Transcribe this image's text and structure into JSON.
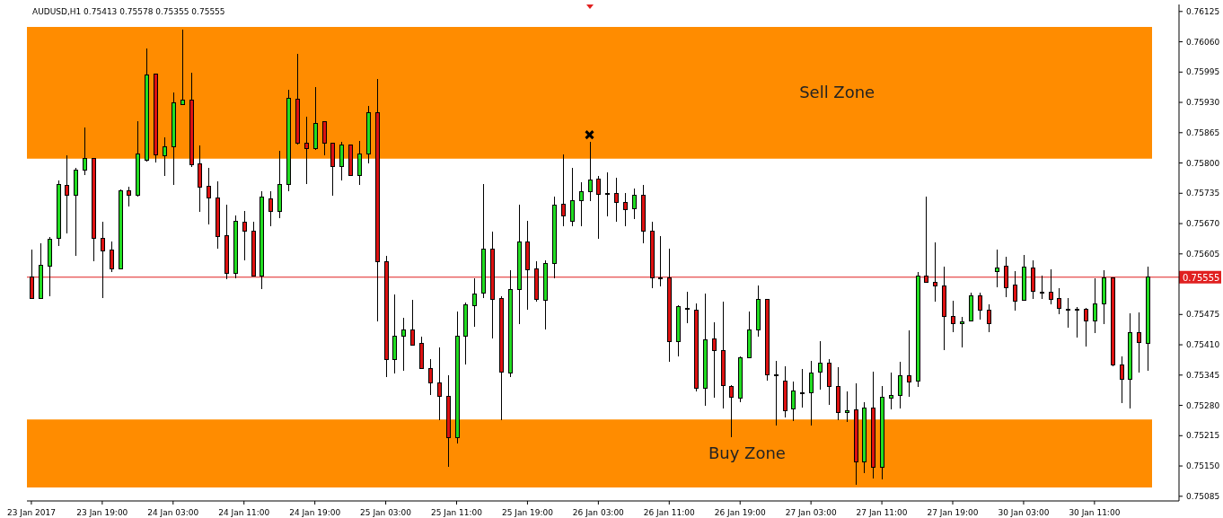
{
  "chart_data": {
    "type": "candlestick",
    "title": "AUDUSD,H1  0.75413 0.75578 0.75355 0.75555",
    "categories": [
      "23 Jan 2017",
      null,
      null,
      null,
      null,
      null,
      null,
      null,
      "23 Jan 19:00",
      null,
      null,
      null,
      null,
      null,
      null,
      null,
      "24 Jan 03:00",
      null,
      null,
      null,
      null,
      null,
      null,
      null,
      "24 Jan 11:00",
      null,
      null,
      null,
      null,
      null,
      null,
      null,
      "24 Jan 19:00",
      null,
      null,
      null,
      null,
      null,
      null,
      null,
      "25 Jan 03:00",
      null,
      null,
      null,
      null,
      null,
      null,
      null,
      "25 Jan 11:00",
      null,
      null,
      null,
      null,
      null,
      null,
      null,
      "25 Jan 19:00",
      null,
      null,
      null,
      null,
      null,
      null,
      null,
      "26 Jan 03:00",
      null,
      null,
      null,
      null,
      null,
      null,
      null,
      "26 Jan 11:00",
      null,
      null,
      null,
      null,
      null,
      null,
      null,
      "26 Jan 19:00",
      null,
      null,
      null,
      null,
      null,
      null,
      null,
      "27 Jan 03:00",
      null,
      null,
      null,
      null,
      null,
      null,
      null,
      "27 Jan 11:00",
      null,
      null,
      null,
      null,
      null,
      null,
      null,
      "27 Jan 19:00",
      null,
      null,
      null,
      null,
      null,
      null,
      null,
      "30 Jan 03:00",
      null,
      null,
      null,
      null,
      null,
      null,
      null,
      "30 Jan 11:00",
      null,
      null,
      null,
      null,
      null,
      null
    ],
    "ohlc": [
      [
        0.75556,
        0.75614,
        0.75508,
        0.7551
      ],
      [
        0.7551,
        0.75627,
        0.75508,
        0.75581
      ],
      [
        0.75579,
        0.75641,
        0.75514,
        0.75637
      ],
      [
        0.75639,
        0.75763,
        0.75621,
        0.75754
      ],
      [
        0.75752,
        0.75817,
        0.75648,
        0.75731
      ],
      [
        0.75731,
        0.7579,
        0.756,
        0.75784
      ],
      [
        0.75784,
        0.75876,
        0.75775,
        0.75809
      ],
      [
        0.75809,
        0.75809,
        0.75589,
        0.75639
      ],
      [
        0.75639,
        0.75673,
        0.7551,
        0.75612
      ],
      [
        0.75614,
        0.75631,
        0.75566,
        0.75572
      ],
      [
        0.75572,
        0.75744,
        0.75572,
        0.7574
      ],
      [
        0.7574,
        0.7575,
        0.75706,
        0.75731
      ],
      [
        0.75731,
        0.7589,
        0.75727,
        0.75819
      ],
      [
        0.75805,
        0.76045,
        0.75803,
        0.75989
      ],
      [
        0.75991,
        0.75991,
        0.75801,
        0.75817
      ],
      [
        0.75815,
        0.75855,
        0.75773,
        0.75834
      ],
      [
        0.75834,
        0.75951,
        0.75752,
        0.7593
      ],
      [
        0.75926,
        0.76087,
        0.75926,
        0.75935
      ],
      [
        0.75935,
        0.75993,
        0.75792,
        0.75796
      ],
      [
        0.75798,
        0.75838,
        0.75696,
        0.75748
      ],
      [
        0.7575,
        0.7579,
        0.75669,
        0.75725
      ],
      [
        0.75725,
        0.75761,
        0.75616,
        0.75643
      ],
      [
        0.75644,
        0.7571,
        0.75551,
        0.75564
      ],
      [
        0.75564,
        0.75688,
        0.75552,
        0.75675
      ],
      [
        0.75673,
        0.75698,
        0.75591,
        0.75654
      ],
      [
        0.75654,
        0.75673,
        0.75556,
        0.75558
      ],
      [
        0.75558,
        0.7574,
        0.7553,
        0.75727
      ],
      [
        0.75723,
        0.7574,
        0.75664,
        0.75696
      ],
      [
        0.75696,
        0.75826,
        0.75681,
        0.75754
      ],
      [
        0.75754,
        0.75957,
        0.7574,
        0.75939
      ],
      [
        0.75937,
        0.76035,
        0.7584,
        0.75842
      ],
      [
        0.75842,
        0.75899,
        0.75754,
        0.7583
      ],
      [
        0.7583,
        0.75962,
        0.75828,
        0.75884
      ],
      [
        0.75888,
        0.75888,
        0.75817,
        0.75842
      ],
      [
        0.75842,
        0.75842,
        0.75729,
        0.75792
      ],
      [
        0.75792,
        0.75845,
        0.75763,
        0.75838
      ],
      [
        0.75838,
        0.7584,
        0.75773,
        0.75773
      ],
      [
        0.75773,
        0.75847,
        0.75752,
        0.75819
      ],
      [
        0.75819,
        0.75922,
        0.758,
        0.75907
      ],
      [
        0.75907,
        0.7598,
        0.75461,
        0.75589
      ],
      [
        0.75589,
        0.756,
        0.7534,
        0.75378
      ],
      [
        0.75378,
        0.75518,
        0.75348,
        0.75428
      ],
      [
        0.75428,
        0.75468,
        0.75355,
        0.75441
      ],
      [
        0.75441,
        0.75507,
        0.75409,
        0.75409
      ],
      [
        0.75413,
        0.75428,
        0.75359,
        0.75359
      ],
      [
        0.75359,
        0.7538,
        0.75302,
        0.75328
      ],
      [
        0.75328,
        0.75405,
        0.75248,
        0.753
      ],
      [
        0.753,
        0.75344,
        0.75148,
        0.7521
      ],
      [
        0.7521,
        0.75482,
        0.75198,
        0.75428
      ],
      [
        0.75428,
        0.75501,
        0.75367,
        0.75495
      ],
      [
        0.75493,
        0.75552,
        0.75449,
        0.75518
      ],
      [
        0.7552,
        0.75754,
        0.7551,
        0.75616
      ],
      [
        0.75616,
        0.75652,
        0.75424,
        0.75508
      ],
      [
        0.7551,
        0.75514,
        0.75248,
        0.75351
      ],
      [
        0.7535,
        0.7557,
        0.7534,
        0.75528
      ],
      [
        0.75528,
        0.7571,
        0.75455,
        0.75631
      ],
      [
        0.75631,
        0.75675,
        0.75485,
        0.7557
      ],
      [
        0.75572,
        0.75589,
        0.75503,
        0.75508
      ],
      [
        0.75505,
        0.75591,
        0.75443,
        0.75585
      ],
      [
        0.75585,
        0.75727,
        0.75552,
        0.7571
      ],
      [
        0.75711,
        0.75819,
        0.75664,
        0.75687
      ],
      [
        0.75675,
        0.7579,
        0.75665,
        0.75719
      ],
      [
        0.75719,
        0.75759,
        0.75665,
        0.75738
      ],
      [
        0.75738,
        0.75845,
        0.75719,
        0.75763
      ],
      [
        0.75765,
        0.75773,
        0.75637,
        0.75733
      ],
      [
        0.75734,
        0.7578,
        0.75685,
        0.75733
      ],
      [
        0.75734,
        0.75769,
        0.75673,
        0.75715
      ],
      [
        0.75715,
        0.75736,
        0.75665,
        0.757
      ],
      [
        0.75702,
        0.75746,
        0.75679,
        0.75731
      ],
      [
        0.75731,
        0.75752,
        0.75627,
        0.75654
      ],
      [
        0.75654,
        0.75673,
        0.75531,
        0.75554
      ],
      [
        0.75554,
        0.75643,
        0.75535,
        0.75554
      ],
      [
        0.75554,
        0.75616,
        0.75374,
        0.75417
      ],
      [
        0.75417,
        0.75495,
        0.75386,
        0.75491
      ],
      [
        0.75489,
        0.75524,
        0.75457,
        0.75489
      ],
      [
        0.75485,
        0.75499,
        0.75309,
        0.75317
      ],
      [
        0.75317,
        0.7552,
        0.75279,
        0.7542
      ],
      [
        0.75422,
        0.75459,
        0.75296,
        0.75397
      ],
      [
        0.75397,
        0.75503,
        0.75273,
        0.75323
      ],
      [
        0.75321,
        0.75323,
        0.75212,
        0.75298
      ],
      [
        0.75296,
        0.75386,
        0.75286,
        0.75382
      ],
      [
        0.75382,
        0.75482,
        0.75382,
        0.75441
      ],
      [
        0.75441,
        0.75537,
        0.75428,
        0.75508
      ],
      [
        0.75508,
        0.75508,
        0.75334,
        0.75346
      ],
      [
        0.75346,
        0.75376,
        0.75237,
        0.75344
      ],
      [
        0.75332,
        0.75363,
        0.75254,
        0.75269
      ],
      [
        0.75273,
        0.75332,
        0.75246,
        0.75311
      ],
      [
        0.75307,
        0.75359,
        0.75275,
        0.75307
      ],
      [
        0.75307,
        0.75376,
        0.75237,
        0.7535
      ],
      [
        0.75351,
        0.75418,
        0.75313,
        0.75371
      ],
      [
        0.75371,
        0.7538,
        0.75282,
        0.75321
      ],
      [
        0.75321,
        0.75361,
        0.75248,
        0.75265
      ],
      [
        0.75265,
        0.75309,
        0.75244,
        0.75269
      ],
      [
        0.75271,
        0.75327,
        0.7511,
        0.75158
      ],
      [
        0.75158,
        0.75286,
        0.75135,
        0.75275
      ],
      [
        0.75275,
        0.75353,
        0.75124,
        0.75148
      ],
      [
        0.75148,
        0.75321,
        0.75122,
        0.75298
      ],
      [
        0.75296,
        0.75351,
        0.75271,
        0.75302
      ],
      [
        0.75302,
        0.75374,
        0.75273,
        0.75344
      ],
      [
        0.75344,
        0.7544,
        0.75298,
        0.7533
      ],
      [
        0.75332,
        0.75566,
        0.75319,
        0.75558
      ],
      [
        0.75558,
        0.75727,
        0.75543,
        0.75543
      ],
      [
        0.75543,
        0.75629,
        0.75503,
        0.75537
      ],
      [
        0.75537,
        0.75577,
        0.75399,
        0.7547
      ],
      [
        0.7547,
        0.75505,
        0.75438,
        0.75455
      ],
      [
        0.75455,
        0.7547,
        0.75405,
        0.75459
      ],
      [
        0.75461,
        0.75522,
        0.75461,
        0.75516
      ],
      [
        0.75516,
        0.75522,
        0.75464,
        0.75484
      ],
      [
        0.75484,
        0.75497,
        0.75438,
        0.75455
      ],
      [
        0.75568,
        0.75614,
        0.75533,
        0.75574
      ],
      [
        0.75579,
        0.75598,
        0.75512,
        0.75533
      ],
      [
        0.75539,
        0.75568,
        0.75484,
        0.75503
      ],
      [
        0.75505,
        0.75602,
        0.75505,
        0.75577
      ],
      [
        0.75575,
        0.75591,
        0.75508,
        0.75524
      ],
      [
        0.75522,
        0.75558,
        0.75508,
        0.75522
      ],
      [
        0.75522,
        0.75572,
        0.75497,
        0.75507
      ],
      [
        0.7551,
        0.75531,
        0.75476,
        0.75489
      ],
      [
        0.75487,
        0.7551,
        0.75447,
        0.75487
      ],
      [
        0.75487,
        0.75491,
        0.75426,
        0.75487
      ],
      [
        0.75487,
        0.75489,
        0.75407,
        0.75462
      ],
      [
        0.75462,
        0.75552,
        0.75436,
        0.75497
      ],
      [
        0.75497,
        0.7557,
        0.75455,
        0.75554
      ],
      [
        0.75554,
        0.75554,
        0.75363,
        0.75367
      ],
      [
        0.75367,
        0.75386,
        0.75284,
        0.75336
      ],
      [
        0.75336,
        0.75478,
        0.75273,
        0.75436
      ],
      [
        0.75436,
        0.7548,
        0.75351,
        0.75415
      ],
      [
        0.75413,
        0.75578,
        0.75355,
        0.75555
      ]
    ],
    "colors": [
      "#dd1111",
      "#22dd22",
      "#22dd22",
      "#22dd22",
      "#dd1111",
      "#22dd22",
      "#22dd22",
      "#dd1111",
      "#dd1111",
      "#dd1111",
      "#22dd22",
      "#dd1111",
      "#22dd22",
      "#22dd22",
      "#dd1111",
      "#22dd22",
      "#22dd22",
      "#22dd22",
      "#dd1111",
      "#dd1111",
      "#dd1111",
      "#dd1111",
      "#dd1111",
      "#22dd22",
      "#dd1111",
      "#dd1111",
      "#22dd22",
      "#dd1111",
      "#22dd22",
      "#22dd22",
      "#dd1111",
      "#dd1111",
      "#22dd22",
      "#dd1111",
      "#dd1111",
      "#22dd22",
      "#dd1111",
      "#22dd22",
      "#22dd22",
      "#dd1111",
      "#dd1111",
      "#22dd22",
      "#22dd22",
      "#dd1111",
      "#dd1111",
      "#dd1111",
      "#dd1111",
      "#dd1111",
      "#22dd22",
      "#22dd22",
      "#22dd22",
      "#22dd22",
      "#dd1111",
      "#dd1111",
      "#22dd22",
      "#22dd22",
      "#dd1111",
      "#dd1111",
      "#22dd22",
      "#22dd22",
      "#dd1111",
      "#22dd22",
      "#22dd22",
      "#22dd22",
      "#dd1111",
      "#dd1111",
      "#dd1111",
      "#dd1111",
      "#22dd22",
      "#dd1111",
      "#dd1111",
      "#22dd22",
      "#dd1111",
      "#22dd22",
      "#22dd22",
      "#dd1111",
      "#22dd22",
      "#dd1111",
      "#dd1111",
      "#dd1111",
      "#22dd22",
      "#22dd22",
      "#22dd22",
      "#dd1111",
      "#dd1111",
      "#dd1111",
      "#22dd22",
      "#22dd22",
      "#22dd22",
      "#22dd22",
      "#dd1111",
      "#dd1111",
      "#22dd22",
      "#dd1111",
      "#22dd22",
      "#dd1111",
      "#22dd22",
      "#22dd22",
      "#22dd22",
      "#dd1111",
      "#22dd22",
      "#dd1111",
      "#dd1111",
      "#dd1111",
      "#dd1111",
      "#22dd22",
      "#22dd22",
      "#dd1111",
      "#dd1111",
      "#22dd22",
      "#dd1111",
      "#dd1111",
      "#22dd22",
      "#dd1111",
      "#22dd22",
      "#dd1111",
      "#dd1111",
      "#22dd22",
      "#22dd22",
      "#dd1111",
      "#22dd22",
      "#22dd22",
      "#dd1111",
      "#dd1111",
      "#22dd22",
      "#dd1111",
      "#22dd22"
    ],
    "ylim": [
      0.75075,
      0.7614
    ],
    "yticks": [
      0.76125,
      {
        "value": 0.7606,
        "label": "0.76060"
      },
      0.75995,
      {
        "value": 0.7593,
        "label": "0.75930"
      },
      0.75865,
      {
        "value": 0.758,
        "label": "0.75800"
      },
      0.75735,
      {
        "value": 0.7567,
        "label": "0.75670"
      },
      0.75605,
      0.75475,
      {
        "value": 0.7541,
        "label": "0.75410"
      },
      0.75345,
      {
        "value": 0.7528,
        "label": "0.75280"
      },
      0.75215,
      {
        "value": 0.7515,
        "label": "0.75150"
      },
      0.75085
    ],
    "bands": [
      {
        "axis": "y",
        "from": 0.75809,
        "to": 0.76092,
        "label": "Sell Zone",
        "color": "#ff8c00"
      },
      {
        "axis": "y",
        "from": 0.75104,
        "to": 0.7525,
        "label": "Buy Zone",
        "color": "#ff8c00"
      }
    ],
    "ref_lines": [
      {
        "axis": "y",
        "value": 0.75555,
        "label": "0.75555",
        "color": "#e02020"
      }
    ]
  }
}
